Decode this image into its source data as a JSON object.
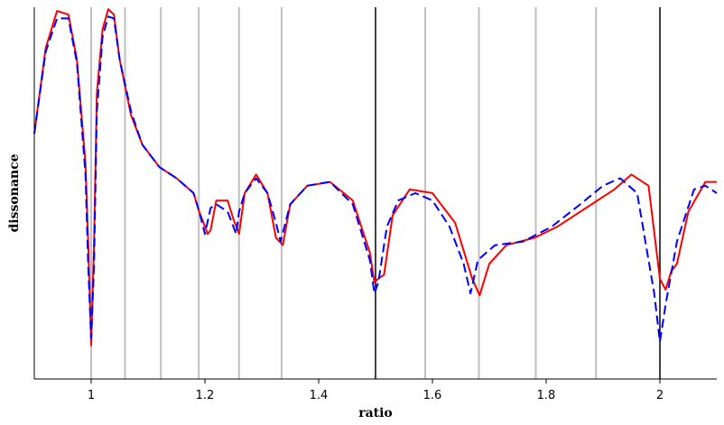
{
  "chart_data": {
    "type": "line",
    "title": "",
    "xlabel": "ratio",
    "ylabel": "dissonance",
    "xlim": [
      0.9,
      2.1
    ],
    "ylim": [
      0,
      1
    ],
    "x_ticks": [
      1,
      1.2,
      1.4,
      1.6,
      1.8,
      2
    ],
    "x_tick_labels": [
      "1",
      "1.2",
      "1.4",
      "1.6",
      "1.8",
      "2"
    ],
    "y_ticks": [],
    "grid": false,
    "reference_lines": {
      "gray": [
        1.0,
        1.0595,
        1.1225,
        1.1892,
        1.2599,
        1.3348,
        1.5874,
        1.6818,
        1.7818,
        1.8877
      ],
      "black": [
        1.5,
        2.0
      ],
      "gray_color": "#c0c0c0",
      "black_color": "#000000"
    },
    "series": [
      {
        "color": "#ff0000",
        "style": "solid",
        "x": [
          0.9,
          0.92,
          0.94,
          0.96,
          0.975,
          0.99,
          0.995,
          1.0,
          1.005,
          1.01,
          1.02,
          1.03,
          1.04,
          1.05,
          1.07,
          1.09,
          1.12,
          1.15,
          1.18,
          1.19,
          1.205,
          1.21,
          1.22,
          1.24,
          1.25,
          1.26,
          1.27,
          1.29,
          1.31,
          1.325,
          1.337,
          1.35,
          1.38,
          1.42,
          1.46,
          1.49,
          1.498,
          1.505,
          1.515,
          1.53,
          1.56,
          1.6,
          1.64,
          1.67,
          1.683,
          1.7,
          1.73,
          1.78,
          1.82,
          1.87,
          1.92,
          1.95,
          1.98,
          2.0,
          2.01,
          2.02,
          2.03,
          2.05,
          2.08,
          2.1
        ],
        "y": [
          0.66,
          0.89,
          0.99,
          0.98,
          0.86,
          0.58,
          0.36,
          0.09,
          0.36,
          0.77,
          0.94,
          0.995,
          0.98,
          0.86,
          0.71,
          0.63,
          0.57,
          0.54,
          0.5,
          0.45,
          0.39,
          0.4,
          0.48,
          0.48,
          0.43,
          0.39,
          0.5,
          0.55,
          0.5,
          0.38,
          0.36,
          0.47,
          0.52,
          0.53,
          0.48,
          0.34,
          0.26,
          0.27,
          0.28,
          0.44,
          0.51,
          0.5,
          0.42,
          0.27,
          0.225,
          0.31,
          0.36,
          0.38,
          0.41,
          0.46,
          0.51,
          0.55,
          0.52,
          0.27,
          0.24,
          0.29,
          0.31,
          0.45,
          0.53,
          0.53
        ]
      },
      {
        "color": "#0000ff",
        "style": "dashed",
        "x": [
          0.9,
          0.92,
          0.94,
          0.96,
          0.975,
          0.99,
          0.995,
          1.0,
          1.005,
          1.01,
          1.02,
          1.03,
          1.04,
          1.05,
          1.07,
          1.09,
          1.12,
          1.15,
          1.18,
          1.19,
          1.2,
          1.21,
          1.22,
          1.24,
          1.25,
          1.255,
          1.26,
          1.27,
          1.29,
          1.31,
          1.325,
          1.333,
          1.35,
          1.38,
          1.42,
          1.46,
          1.49,
          1.498,
          1.505,
          1.52,
          1.54,
          1.57,
          1.6,
          1.63,
          1.655,
          1.667,
          1.68,
          1.71,
          1.76,
          1.81,
          1.86,
          1.9,
          1.93,
          1.96,
          1.99,
          2.0,
          2.01,
          2.03,
          2.06,
          2.08,
          2.1
        ],
        "y": [
          0.66,
          0.88,
          0.97,
          0.97,
          0.85,
          0.55,
          0.3,
          0.11,
          0.3,
          0.72,
          0.92,
          0.975,
          0.97,
          0.86,
          0.72,
          0.63,
          0.57,
          0.54,
          0.5,
          0.45,
          0.39,
          0.46,
          0.47,
          0.45,
          0.41,
          0.39,
          0.45,
          0.5,
          0.54,
          0.5,
          0.42,
          0.37,
          0.47,
          0.52,
          0.53,
          0.47,
          0.32,
          0.23,
          0.26,
          0.41,
          0.48,
          0.5,
          0.48,
          0.41,
          0.31,
          0.23,
          0.32,
          0.36,
          0.37,
          0.41,
          0.47,
          0.52,
          0.54,
          0.5,
          0.23,
          0.1,
          0.2,
          0.37,
          0.51,
          0.52,
          0.5
        ]
      }
    ]
  }
}
